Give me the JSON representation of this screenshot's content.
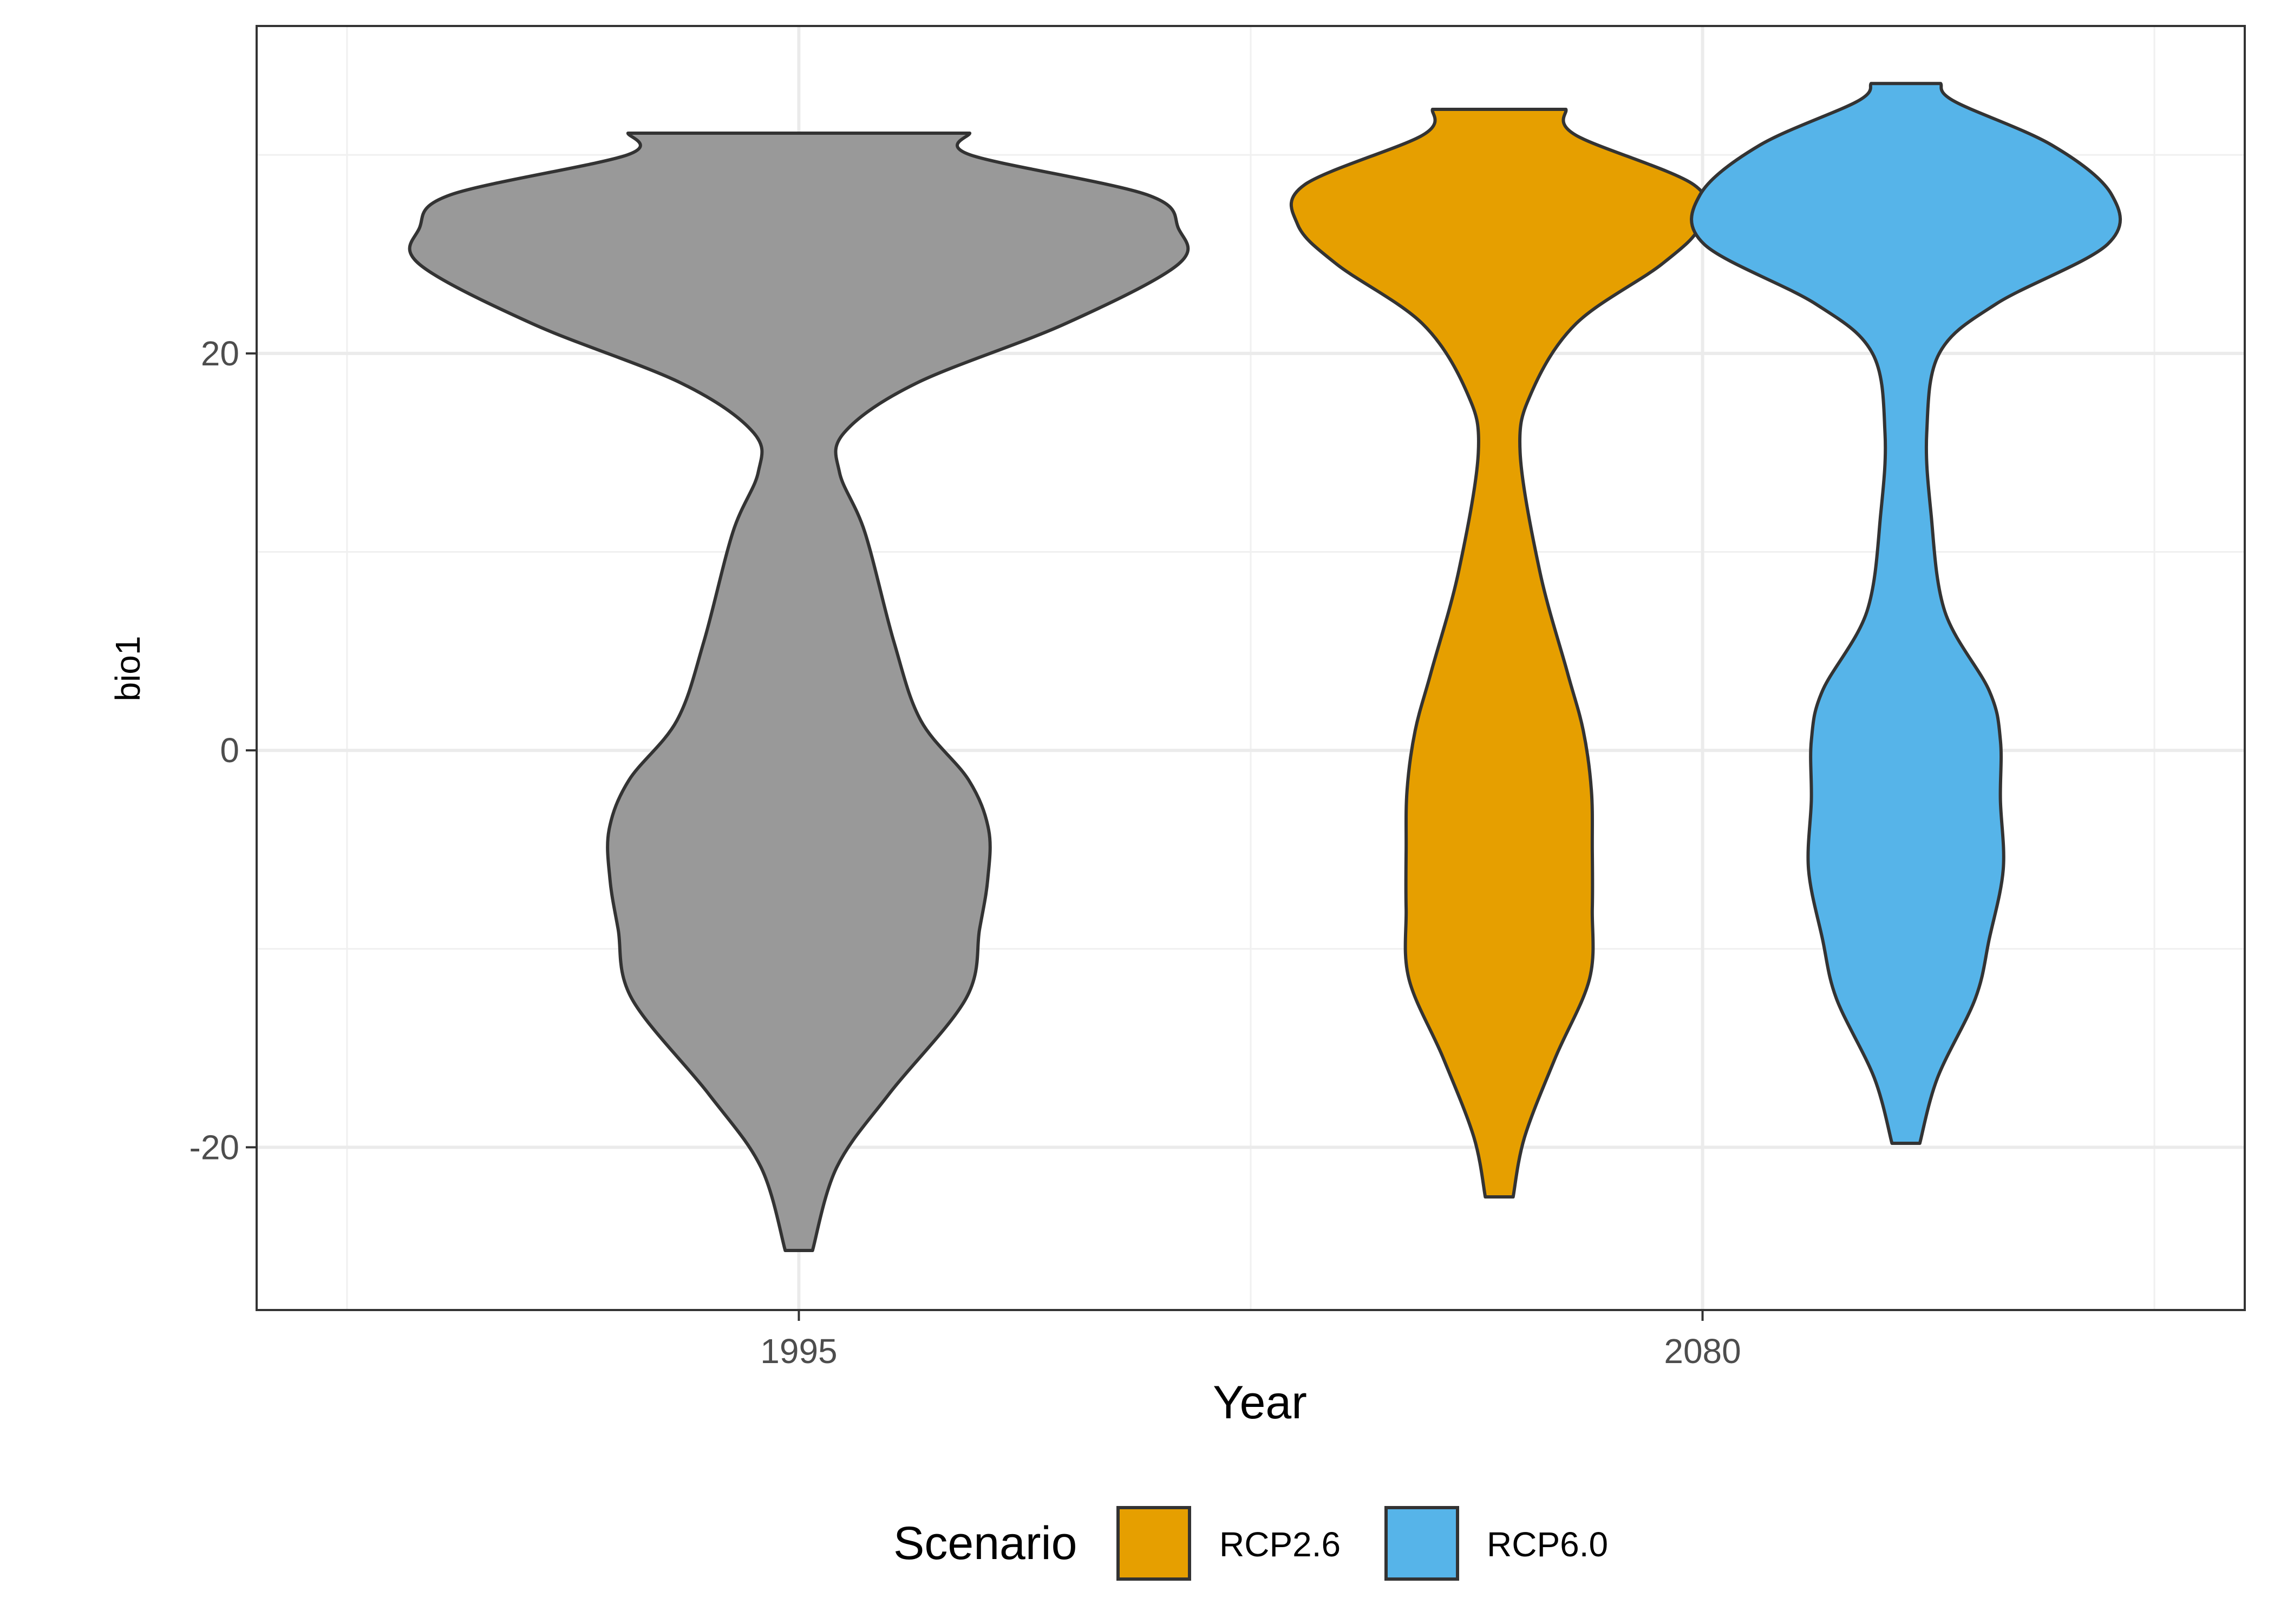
{
  "chart_data": {
    "type": "violin",
    "xlabel": "Year",
    "ylabel": "bio1",
    "ylim": [
      -28.2,
      36.5
    ],
    "y_ticks": [
      -20,
      0,
      20
    ],
    "y_minor_ticks": [
      -10,
      10,
      30
    ],
    "x_categories": [
      "1995",
      "2080"
    ],
    "grid": true,
    "legend": {
      "title": "Scenario",
      "position": "bottom",
      "entries": [
        {
          "label": "RCP2.6",
          "color": "#E69F00"
        },
        {
          "label": "RCP6.0",
          "color": "#56B4E9"
        }
      ]
    },
    "series": [
      {
        "group": "1995",
        "scenario": null,
        "color": "#999999",
        "center": 1.0,
        "profile": [
          [
            -25.2,
            0.0151
          ],
          [
            -21,
            0.042
          ],
          [
            -17.3,
            0.1
          ],
          [
            -12.5,
            0.185
          ],
          [
            -9,
            0.2
          ],
          [
            -6.5,
            0.209
          ],
          [
            -4,
            0.21
          ],
          [
            -1.5,
            0.188
          ],
          [
            1.5,
            0.135
          ],
          [
            5.5,
            0.105
          ],
          [
            11,
            0.073
          ],
          [
            14,
            0.045
          ],
          [
            16,
            0.05
          ],
          [
            18.5,
            0.13
          ],
          [
            21.5,
            0.295
          ],
          [
            24.5,
            0.42
          ],
          [
            26.3,
            0.42
          ],
          [
            28,
            0.385
          ],
          [
            30,
            0.19
          ],
          [
            31.1,
            0.1891
          ]
        ]
      },
      {
        "group": "2080",
        "scenario": "RCP2.6",
        "color": "#E69F00",
        "center": 1.775,
        "profile": [
          [
            -22.5,
            0.0154
          ],
          [
            -19.5,
            0.028
          ],
          [
            -15.5,
            0.062
          ],
          [
            -11.5,
            0.1
          ],
          [
            -8,
            0.103
          ],
          [
            -5,
            0.103
          ],
          [
            -2,
            0.102
          ],
          [
            1,
            0.093
          ],
          [
            4,
            0.075
          ],
          [
            9,
            0.045
          ],
          [
            15,
            0.0231
          ],
          [
            18,
            0.0354
          ],
          [
            21.5,
            0.085
          ],
          [
            24.5,
            0.18
          ],
          [
            26.5,
            0.2231
          ],
          [
            28.5,
            0.2154
          ],
          [
            31,
            0.0846
          ],
          [
            32.3,
            0.0738
          ]
        ]
      },
      {
        "group": "2080",
        "scenario": "RCP6.0",
        "color": "#56B4E9",
        "center": 2.225,
        "profile": [
          [
            -19.8,
            0.0154
          ],
          [
            -16.5,
            0.035
          ],
          [
            -12.5,
            0.0769
          ],
          [
            -9.5,
            0.0923
          ],
          [
            -6,
            0.1077
          ],
          [
            -2.5,
            0.1046
          ],
          [
            0.5,
            0.1046
          ],
          [
            3,
            0.0923
          ],
          [
            7,
            0.0431
          ],
          [
            12,
            0.0277
          ],
          [
            16,
            0.0231
          ],
          [
            20,
            0.0369
          ],
          [
            22.5,
            0.1
          ],
          [
            25.5,
            0.2231
          ],
          [
            28,
            0.2277
          ],
          [
            30.5,
            0.1615
          ],
          [
            32.7,
            0.0538
          ],
          [
            33.6,
            0.0385
          ]
        ]
      }
    ]
  }
}
